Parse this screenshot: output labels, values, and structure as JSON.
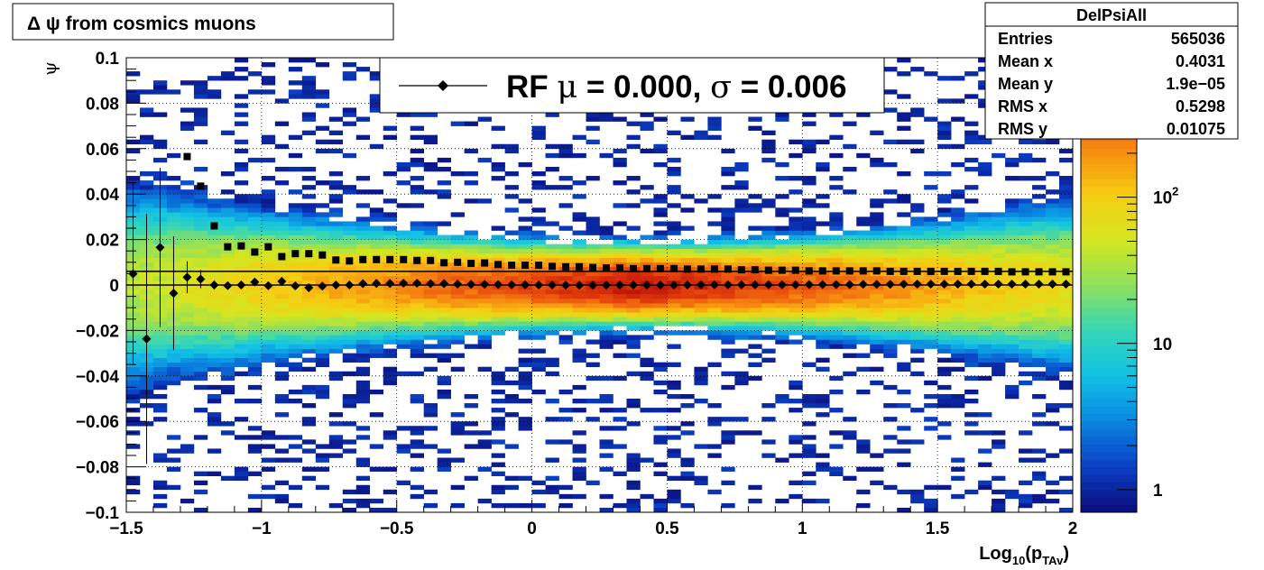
{
  "chart_data": {
    "type": "heatmap",
    "title": "Δ ψ from cosmics muons",
    "xlabel": {
      "prefix": "Log",
      "prefix_sub": "10",
      "open": "(p",
      "var_sub": "TAv",
      "close": ")"
    },
    "ylabel": "ψ",
    "xlim": [
      -1.5,
      2
    ],
    "ylim": [
      -0.1,
      0.1
    ],
    "x_ticks": [
      {
        "value": -1.5,
        "label": "−1.5"
      },
      {
        "value": -1,
        "label": "−1"
      },
      {
        "value": -0.5,
        "label": "−0.5"
      },
      {
        "value": 0,
        "label": "0"
      },
      {
        "value": 0.5,
        "label": "0.5"
      },
      {
        "value": 1,
        "label": "1"
      },
      {
        "value": 1.5,
        "label": "1.5"
      },
      {
        "value": 2,
        "label": "2"
      }
    ],
    "y_ticks": [
      {
        "value": -0.1,
        "label": "−0.1"
      },
      {
        "value": -0.08,
        "label": "−0.08"
      },
      {
        "value": -0.06,
        "label": "−0.06"
      },
      {
        "value": -0.04,
        "label": "−0.04"
      },
      {
        "value": -0.02,
        "label": "−0.02"
      },
      {
        "value": 0,
        "label": "0"
      },
      {
        "value": 0.02,
        "label": "0.02"
      },
      {
        "value": 0.04,
        "label": "0.04"
      },
      {
        "value": 0.06,
        "label": "0.06"
      },
      {
        "value": 0.08,
        "label": "0.08"
      },
      {
        "value": 0.1,
        "label": "0.1"
      }
    ],
    "grid": true,
    "color_scale": {
      "scale": "log",
      "min": 0.7,
      "max": 900,
      "ticks": [
        {
          "value": 1,
          "label": "1"
        },
        {
          "value": 10,
          "label": "10"
        },
        {
          "value": 100,
          "label_base": "10",
          "label_exp": "2"
        }
      ],
      "palette": [
        "#0b0c7a",
        "#0a3fc4",
        "#0a86e0",
        "#11c1e6",
        "#35d6b6",
        "#8fe05c",
        "#d4e620",
        "#f7cc12",
        "#f78a10",
        "#e8480b",
        "#c21208"
      ]
    },
    "density_model": {
      "peak_x": 0.4,
      "peak_value": 850,
      "sigma_y_min": 0.006,
      "sigma_y_growth": 0.0028,
      "x_decay": 0.9,
      "floor": 0.9,
      "cutoff": 0.8
    },
    "legend": {
      "position": "top-center",
      "marker": "diamond",
      "text_prefix": "RF ",
      "mu_symbol": "μ",
      "mu_text": " =  0.000, ",
      "sigma_symbol": "σ",
      "sigma_text": " =   0.006"
    },
    "reference_lines": [
      0,
      0.006
    ],
    "series": [
      {
        "marker": "diamond",
        "x": [
          -1.475,
          -1.425,
          -1.375,
          -1.325,
          -1.275,
          -1.225,
          -1.175,
          -1.125,
          -1.075,
          -1.025,
          -0.975,
          -0.925,
          -0.875,
          -0.825,
          -0.775,
          -0.725,
          -0.675,
          -0.625,
          -0.575,
          -0.525,
          -0.475,
          -0.425,
          -0.375,
          -0.325,
          -0.275,
          -0.225,
          -0.175,
          -0.125,
          -0.075,
          -0.025,
          0.025,
          0.075,
          0.125,
          0.175,
          0.225,
          0.275,
          0.325,
          0.375,
          0.425,
          0.475,
          0.525,
          0.575,
          0.625,
          0.675,
          0.725,
          0.775,
          0.825,
          0.875,
          0.925,
          0.975,
          1.025,
          1.075,
          1.125,
          1.175,
          1.225,
          1.275,
          1.325,
          1.375,
          1.425,
          1.475,
          1.525,
          1.575,
          1.625,
          1.675,
          1.725,
          1.775,
          1.825,
          1.875,
          1.925,
          1.975
        ],
        "y": [
          0.0049,
          -0.0237,
          0.0165,
          -0.0036,
          0.0034,
          0.0026,
          0.0,
          -0.0003,
          0.0,
          0.0013,
          -0.0003,
          0.0016,
          -0.0004,
          -0.0012,
          -0.0005,
          0.0,
          0.0,
          0.0006,
          0.0007,
          0.0007,
          0.0008,
          0.0008,
          0.0006,
          0.0006,
          0.0004,
          0.0003,
          0.0003,
          0.0002,
          0.0001,
          0.0001,
          0.0,
          0.0,
          -0.0001,
          -0.0001,
          -0.0001,
          -0.0001,
          0.0,
          0.0,
          0.0,
          0.0,
          0.0,
          0.0,
          0.0001,
          0.0001,
          0.0001,
          0.0001,
          0.0001,
          0.0001,
          0.0001,
          0.0001,
          0.0002,
          0.0002,
          0.0002,
          0.0002,
          0.0003,
          0.0003,
          0.0003,
          0.0004,
          0.0004,
          0.0004,
          0.0004,
          0.0004,
          0.0004,
          0.0004,
          0.0004,
          0.0004,
          0.0004,
          0.0004,
          0.0004,
          0.0004
        ],
        "yerr": [
          0.04,
          0.055,
          0.035,
          0.025,
          0.007,
          0.004,
          0.002,
          0.001,
          0.001,
          0.0008,
          0.0006,
          0.0005,
          0.0004,
          0.0003,
          0.0003,
          0.0002,
          0.0002,
          0.0002,
          0.0002,
          0.0001,
          0.0001,
          0.0001,
          0.0001,
          0.0001,
          0.0001,
          0.0001,
          0.0001,
          0.0001,
          0.0001,
          0.0001,
          0.0001,
          0.0001,
          0.0001,
          0.0001,
          0.0001,
          0.0001,
          0.0001,
          0.0001,
          0.0001,
          0.0001,
          0.0001,
          0.0001,
          0.0001,
          0.0001,
          0.0001,
          0.0001,
          0.0001,
          0.0001,
          0.0001,
          0.0001,
          0.0001,
          0.0001,
          0.0001,
          0.0001,
          0.0001,
          0.0001,
          0.0001,
          0.0001,
          0.0001,
          0.0001,
          0.0001,
          0.0001,
          0.0001,
          0.0001,
          0.0001,
          0.0001,
          0.0001,
          0.0001,
          0.0002,
          0.0002
        ]
      },
      {
        "marker": "square",
        "x": [
          -1.275,
          -1.225,
          -1.175,
          -1.125,
          -1.075,
          -1.025,
          -0.975,
          -0.925,
          -0.875,
          -0.825,
          -0.775,
          -0.725,
          -0.675,
          -0.625,
          -0.575,
          -0.525,
          -0.475,
          -0.425,
          -0.375,
          -0.325,
          -0.275,
          -0.225,
          -0.175,
          -0.125,
          -0.075,
          -0.025,
          0.025,
          0.075,
          0.125,
          0.175,
          0.225,
          0.275,
          0.325,
          0.375,
          0.425,
          0.475,
          0.525,
          0.575,
          0.625,
          0.675,
          0.725,
          0.775,
          0.825,
          0.875,
          0.925,
          0.975,
          1.025,
          1.075,
          1.125,
          1.175,
          1.225,
          1.275,
          1.325,
          1.375,
          1.425,
          1.475,
          1.525,
          1.575,
          1.625,
          1.675,
          1.725,
          1.775,
          1.825,
          1.875,
          1.925,
          1.975
        ],
        "y": [
          0.0565,
          0.0435,
          0.026,
          0.0168,
          0.0172,
          0.0145,
          0.0168,
          0.0125,
          0.0138,
          0.0138,
          0.0132,
          0.011,
          0.0106,
          0.0112,
          0.0112,
          0.0112,
          0.0112,
          0.0108,
          0.0108,
          0.0098,
          0.01,
          0.0095,
          0.0097,
          0.009,
          0.0087,
          0.0087,
          0.0087,
          0.0082,
          0.008,
          0.008,
          0.0077,
          0.0075,
          0.0075,
          0.0072,
          0.0072,
          0.0072,
          0.0072,
          0.007,
          0.007,
          0.007,
          0.007,
          0.0067,
          0.0067,
          0.0065,
          0.0065,
          0.0065,
          0.0062,
          0.0062,
          0.0062,
          0.0062,
          0.0062,
          0.0062,
          0.006,
          0.006,
          0.006,
          0.006,
          0.006,
          0.006,
          0.006,
          0.006,
          0.006,
          0.0058,
          0.0058,
          0.0058,
          0.0058,
          0.0058
        ]
      }
    ],
    "stats_box": {
      "title": "DelPsiAll",
      "position": "top-right",
      "rows": [
        {
          "label": "Entries",
          "value": "565036"
        },
        {
          "label": "Mean x",
          "value": "0.4031"
        },
        {
          "label": "Mean y",
          "value": "1.9e−05"
        },
        {
          "label": "RMS x",
          "value": "0.5298"
        },
        {
          "label": "RMS y",
          "value": "0.01075"
        }
      ]
    }
  }
}
